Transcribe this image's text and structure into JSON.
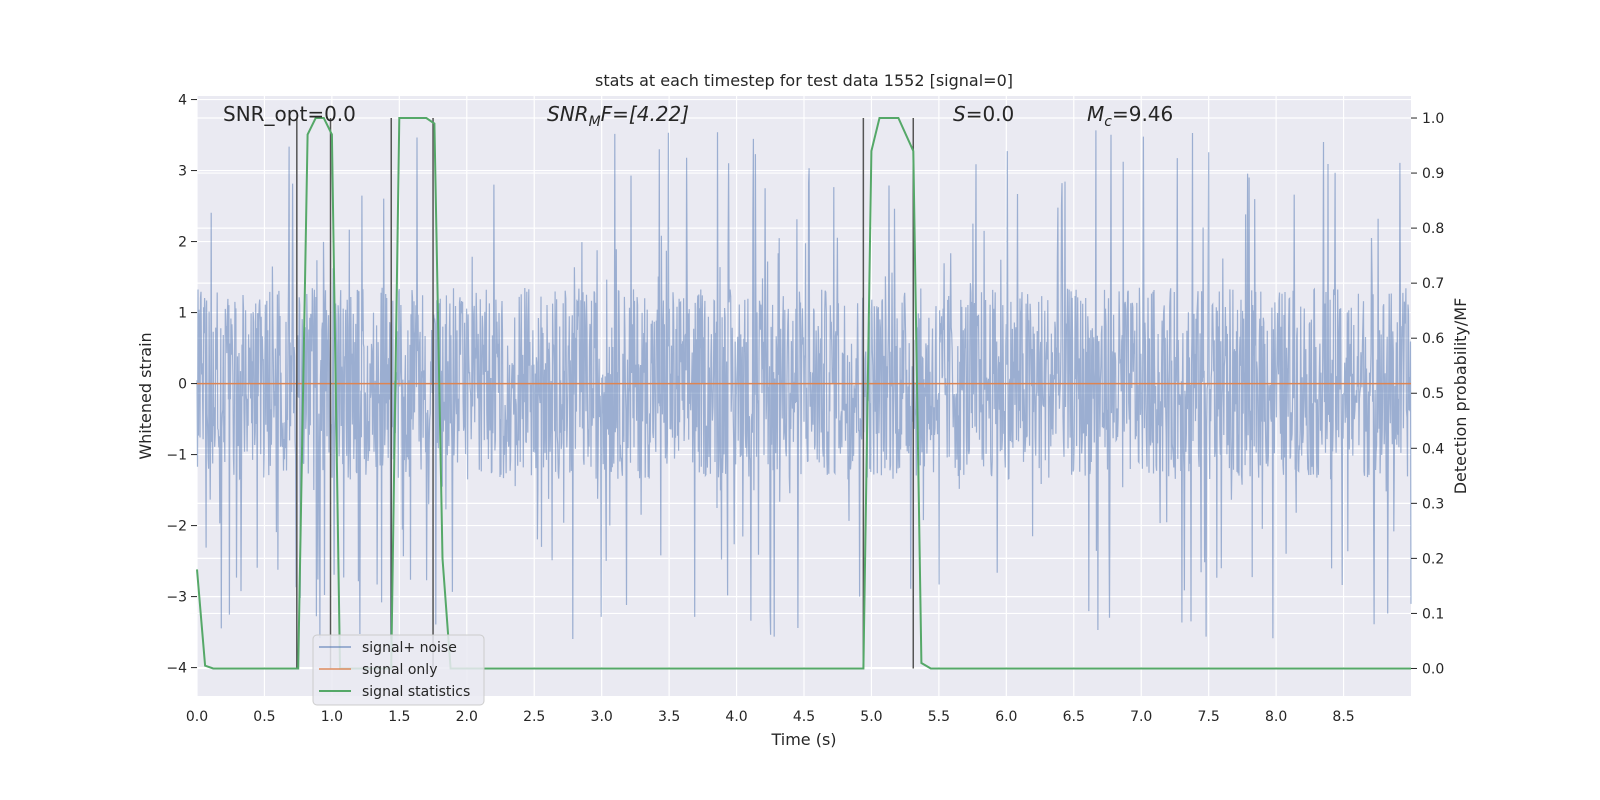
{
  "chart_data": {
    "type": "line",
    "title": "stats at each timestep for test data 1552 [signal=0]",
    "xlabel": "Time (s)",
    "ylabel_left": "Whitened strain",
    "ylabel_right": "Detection probability/MF",
    "xlim": [
      0.0,
      9.0
    ],
    "ylim_left": [
      -4.4,
      4.05
    ],
    "ylim_right": [
      -0.05,
      1.04
    ],
    "xticks": [
      "0.0",
      "0.5",
      "1.0",
      "1.5",
      "2.0",
      "2.5",
      "3.0",
      "3.5",
      "4.0",
      "4.5",
      "5.0",
      "5.5",
      "6.0",
      "6.5",
      "7.0",
      "7.5",
      "8.0",
      "8.5"
    ],
    "yticks_left": [
      "4",
      "3",
      "2",
      "1",
      "0",
      "−1",
      "−2",
      "−3",
      "−4"
    ],
    "yticks_right": [
      "1.0",
      "0.9",
      "0.8",
      "0.7",
      "0.6",
      "0.5",
      "0.4",
      "0.3",
      "0.2",
      "0.1",
      "0.0"
    ],
    "grid": true,
    "legend_position": "lower-left",
    "annotations": {
      "snr_opt": "SNR_opt=0.0",
      "snr_mf_main": "SNR",
      "snr_mf_sub": "M",
      "snr_mf_rest": "F=[4.22]",
      "s_main": "S",
      "s_rest": "=0.0",
      "mc_main": "M",
      "mc_sub": "c",
      "mc_rest": "=9.46"
    },
    "series": [
      {
        "name": "signal+ noise",
        "color": "#4c72b0",
        "description_axis": "left",
        "envelope_typical": 1.35,
        "envelope_peak": 3.6
      },
      {
        "name": "signal only",
        "color": "#dd8452",
        "axis": "left",
        "x": [
          0.0,
          9.0
        ],
        "y": [
          0.0,
          0.0
        ]
      },
      {
        "name": "signal statistics",
        "color": "#55a868",
        "axis": "right",
        "x": [
          0.0,
          0.06,
          0.12,
          0.75,
          0.82,
          0.88,
          0.94,
          1.0,
          1.06,
          1.44,
          1.5,
          1.56,
          1.7,
          1.76,
          1.82,
          1.88,
          4.94,
          5.0,
          5.06,
          5.12,
          5.2,
          5.31,
          5.37,
          5.44,
          9.0
        ],
        "y": [
          0.18,
          0.005,
          0.0,
          0.0,
          0.97,
          1.0,
          1.0,
          0.97,
          0.0,
          0.0,
          1.0,
          1.0,
          1.0,
          0.99,
          0.2,
          0.0,
          0.0,
          0.94,
          1.0,
          1.0,
          1.0,
          0.94,
          0.01,
          0.0,
          0.0
        ]
      }
    ],
    "vertical_markers": {
      "color": "#555555",
      "x": [
        0.74,
        0.99,
        1.44,
        1.75,
        4.94,
        5.31
      ],
      "ymax": 1.0
    }
  }
}
